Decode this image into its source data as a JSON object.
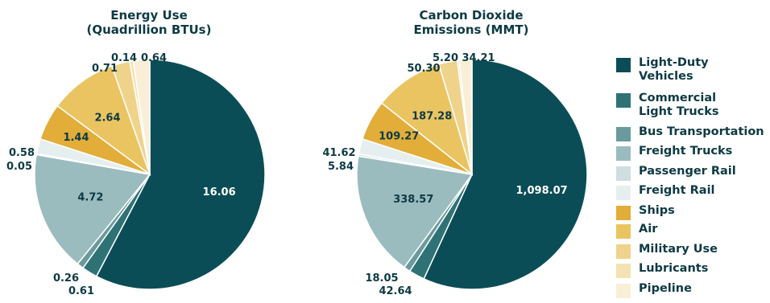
{
  "chart_data": [
    {
      "type": "pie",
      "title_lines": [
        "Energy Use",
        "(Quadrillion BTUs)"
      ],
      "categories": [
        "Light-Duty Vehicles",
        "Commercial Light Trucks",
        "Bus Transportation",
        "Freight Trucks",
        "Passenger Rail",
        "Freight Rail",
        "Ships",
        "Air",
        "Military Use",
        "Lubricants",
        "Pipeline"
      ],
      "values": [
        16.06,
        0.61,
        0.26,
        4.72,
        0.05,
        0.58,
        1.44,
        2.64,
        0.71,
        0.14,
        0.64
      ],
      "value_labels": [
        "16.06",
        "0.61",
        "0.26",
        "4.72",
        "0.05",
        "0.58",
        "1.44",
        "2.64",
        "0.71",
        "0.14",
        "0.64"
      ]
    },
    {
      "type": "pie",
      "title_lines": [
        "Carbon Dioxide",
        "Emissions (MMT)"
      ],
      "categories": [
        "Light-Duty Vehicles",
        "Commercial Light Trucks",
        "Bus Transportation",
        "Freight Trucks",
        "Passenger Rail",
        "Freight Rail",
        "Ships",
        "Air",
        "Military Use",
        "Lubricants",
        "Pipeline"
      ],
      "values": [
        1098.07,
        42.64,
        18.05,
        338.57,
        5.84,
        41.62,
        109.27,
        187.28,
        50.3,
        5.2,
        34.21
      ],
      "value_labels": [
        "1,098.07",
        "42.64",
        "18.05",
        "338.57",
        "5.84",
        "41.62",
        "109.27",
        "187.28",
        "50.30",
        "5.20",
        "34.21"
      ]
    }
  ],
  "legend": {
    "items": [
      {
        "lines": [
          "Light-Duty",
          "Vehicles"
        ],
        "color": "#0b4d56"
      },
      {
        "lines": [
          "Commercial",
          "Light Trucks"
        ],
        "color": "#2f7276"
      },
      {
        "lines": [
          "Bus Transportation"
        ],
        "color": "#6a9a9c"
      },
      {
        "lines": [
          "Freight Trucks"
        ],
        "color": "#9bbcbf"
      },
      {
        "lines": [
          "Passenger Rail"
        ],
        "color": "#cfdede"
      },
      {
        "lines": [
          "Freight Rail"
        ],
        "color": "#e6eff0"
      },
      {
        "lines": [
          "Ships"
        ],
        "color": "#e2ad39"
      },
      {
        "lines": [
          "Air"
        ],
        "color": "#ebc462"
      },
      {
        "lines": [
          "Military Use"
        ],
        "color": "#efd38b"
      },
      {
        "lines": [
          "Lubricants"
        ],
        "color": "#f5e2b2"
      },
      {
        "lines": [
          "Pipeline"
        ],
        "color": "#f9efd6"
      }
    ]
  }
}
